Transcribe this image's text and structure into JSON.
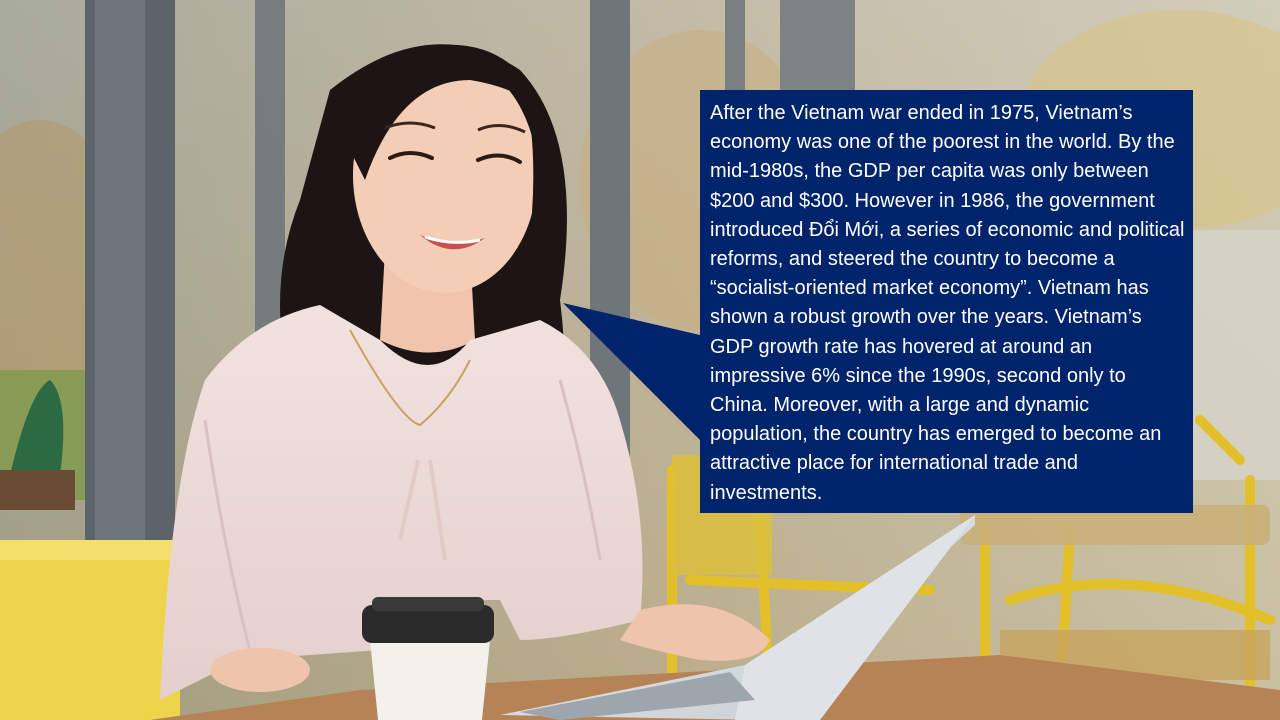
{
  "callout": {
    "text": "After the Vietnam war ended in 1975, Vietnam’s economy was one of the poorest in the world. By the mid-1980s, the GDP per capita was only between $200 and $300. However in 1986, the government introduced Đổi Mới, a series of economic and political reforms, and steered the country to become a “socialist-oriented market economy”. Vietnam has shown a robust growth over the years. Vietnam’s GDP growth rate has hovered at around an impressive 6% since the 1990s, second only to China. Moreover, with a large and dynamic population, the country has emerged to become an attractive place for international trade and investments.",
    "background_color": "#00246b",
    "text_color": "#ffffff"
  }
}
